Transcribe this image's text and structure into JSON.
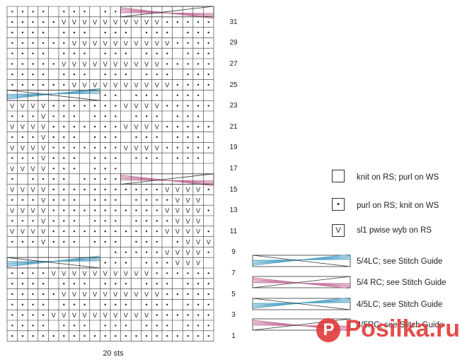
{
  "chart": {
    "footer_label": "20 sts",
    "row_numbers": [
      "31",
      "29",
      "27",
      "25",
      "23",
      "21",
      "19",
      "17",
      "15",
      "13",
      "11",
      "9",
      "7",
      "5",
      "3",
      "1"
    ],
    "colors": {
      "grid": "#333333",
      "blue": "#5aa7c9",
      "pink": "#c87ba0",
      "background": "#ffffff"
    }
  },
  "legend": {
    "items": [
      {
        "symbol": "",
        "label": "knit on RS; purl on WS",
        "icon": "empty-square-icon"
      },
      {
        "symbol": "•",
        "label": "purl on RS; knit on WS",
        "icon": "dot-square-icon"
      },
      {
        "symbol": "V",
        "label": "sl1 pwise wyb on RS",
        "icon": "v-square-icon"
      }
    ],
    "cables": [
      {
        "label": "5/4LC; see Stitch Guide",
        "color": "#5aa7c9"
      },
      {
        "label": "5/4 RC; see Stitch Guide",
        "color": "#c87ba0"
      },
      {
        "label": "4/5LC; see Stitch Guide",
        "color": "#5aa7c9"
      },
      {
        "label": "4/5RC; see Stitch Guide",
        "color": "#c87ba0"
      }
    ]
  },
  "watermark": {
    "text": "Posilka.ru",
    "icon": "pinterest-pin-icon"
  }
}
